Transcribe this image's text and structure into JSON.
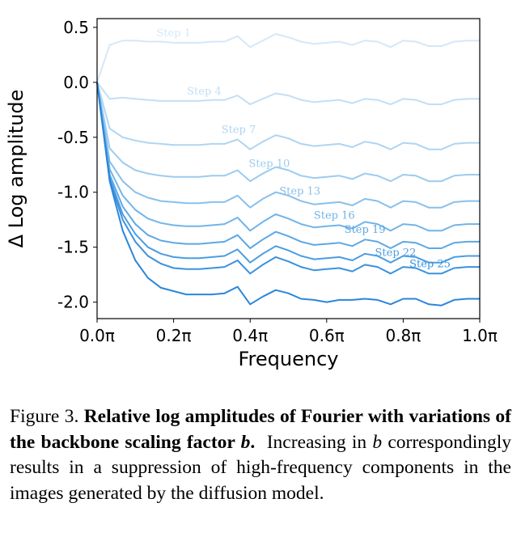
{
  "chart_data": {
    "type": "line",
    "xlabel": "Frequency",
    "ylabel": "Δ Log amplitude",
    "xlim": [
      0.0,
      1.0
    ],
    "ylim": [
      -2.15,
      0.58
    ],
    "x_ticks": [
      0.0,
      0.2,
      0.4,
      0.6,
      0.8,
      1.0
    ],
    "x_tick_labels": [
      "0.0π",
      "0.2π",
      "0.4π",
      "0.6π",
      "0.8π",
      "1.0π"
    ],
    "y_ticks": [
      0.5,
      0.0,
      -0.5,
      -1.0,
      -1.5,
      -2.0
    ],
    "y_tick_labels": [
      "0.5",
      "0.0",
      "-0.5",
      "-1.0",
      "-1.5",
      "-2.0"
    ],
    "grid": false,
    "legend": "none",
    "x": [
      0.0,
      0.033,
      0.067,
      0.1,
      0.133,
      0.167,
      0.2,
      0.233,
      0.267,
      0.3,
      0.333,
      0.367,
      0.4,
      0.433,
      0.467,
      0.5,
      0.533,
      0.567,
      0.6,
      0.633,
      0.667,
      0.7,
      0.733,
      0.767,
      0.8,
      0.833,
      0.867,
      0.9,
      0.933,
      0.967,
      1.0
    ],
    "series": [
      {
        "name": "Step 1",
        "color": "#d5e8f8",
        "label_x": 0.2,
        "values": [
          0.0,
          0.34,
          0.38,
          0.38,
          0.37,
          0.37,
          0.36,
          0.36,
          0.36,
          0.37,
          0.37,
          0.42,
          0.32,
          0.38,
          0.44,
          0.41,
          0.37,
          0.35,
          0.36,
          0.37,
          0.34,
          0.38,
          0.37,
          0.32,
          0.38,
          0.37,
          0.33,
          0.33,
          0.37,
          0.38,
          0.38
        ]
      },
      {
        "name": "Step 4",
        "color": "#c2dff5",
        "label_x": 0.28,
        "values": [
          0.0,
          -0.15,
          -0.14,
          -0.15,
          -0.16,
          -0.17,
          -0.17,
          -0.17,
          -0.17,
          -0.16,
          -0.16,
          -0.12,
          -0.2,
          -0.15,
          -0.1,
          -0.12,
          -0.16,
          -0.18,
          -0.17,
          -0.16,
          -0.19,
          -0.15,
          -0.16,
          -0.2,
          -0.15,
          -0.16,
          -0.2,
          -0.2,
          -0.16,
          -0.15,
          -0.15
        ]
      },
      {
        "name": "Step 7",
        "color": "#aed5f2",
        "label_x": 0.37,
        "values": [
          0.0,
          -0.42,
          -0.5,
          -0.53,
          -0.55,
          -0.56,
          -0.57,
          -0.57,
          -0.57,
          -0.56,
          -0.56,
          -0.52,
          -0.61,
          -0.54,
          -0.48,
          -0.51,
          -0.56,
          -0.58,
          -0.57,
          -0.56,
          -0.59,
          -0.54,
          -0.56,
          -0.61,
          -0.55,
          -0.56,
          -0.61,
          -0.61,
          -0.56,
          -0.55,
          -0.55
        ]
      },
      {
        "name": "Step 10",
        "color": "#9ccbef",
        "label_x": 0.45,
        "values": [
          0.0,
          -0.6,
          -0.73,
          -0.8,
          -0.83,
          -0.85,
          -0.86,
          -0.86,
          -0.86,
          -0.85,
          -0.85,
          -0.8,
          -0.9,
          -0.83,
          -0.77,
          -0.8,
          -0.85,
          -0.87,
          -0.86,
          -0.85,
          -0.88,
          -0.83,
          -0.85,
          -0.9,
          -0.84,
          -0.85,
          -0.9,
          -0.9,
          -0.85,
          -0.84,
          -0.84
        ]
      },
      {
        "name": "Step 13",
        "color": "#88c0ec",
        "label_x": 0.53,
        "values": [
          0.0,
          -0.72,
          -0.9,
          -1.0,
          -1.05,
          -1.08,
          -1.09,
          -1.1,
          -1.1,
          -1.09,
          -1.09,
          -1.03,
          -1.14,
          -1.06,
          -1.0,
          -1.03,
          -1.08,
          -1.11,
          -1.1,
          -1.09,
          -1.12,
          -1.06,
          -1.08,
          -1.14,
          -1.08,
          -1.09,
          -1.14,
          -1.14,
          -1.09,
          -1.08,
          -1.08
        ]
      },
      {
        "name": "Step 16",
        "color": "#72b4e8",
        "label_x": 0.62,
        "values": [
          0.0,
          -0.79,
          -1.03,
          -1.16,
          -1.24,
          -1.28,
          -1.3,
          -1.31,
          -1.31,
          -1.3,
          -1.29,
          -1.23,
          -1.35,
          -1.27,
          -1.2,
          -1.24,
          -1.29,
          -1.32,
          -1.31,
          -1.3,
          -1.33,
          -1.27,
          -1.29,
          -1.35,
          -1.29,
          -1.3,
          -1.35,
          -1.35,
          -1.3,
          -1.29,
          -1.29
        ]
      },
      {
        "name": "Step 19",
        "color": "#5ca8e5",
        "label_x": 0.7,
        "values": [
          0.0,
          -0.84,
          -1.13,
          -1.29,
          -1.39,
          -1.44,
          -1.46,
          -1.47,
          -1.47,
          -1.46,
          -1.45,
          -1.39,
          -1.51,
          -1.43,
          -1.36,
          -1.4,
          -1.45,
          -1.48,
          -1.47,
          -1.46,
          -1.49,
          -1.43,
          -1.45,
          -1.51,
          -1.45,
          -1.46,
          -1.51,
          -1.51,
          -1.46,
          -1.45,
          -1.45
        ]
      },
      {
        "name": "Step 22",
        "color": "#4a9de2",
        "label_x": 0.78,
        "values": [
          0.0,
          -0.87,
          -1.2,
          -1.38,
          -1.5,
          -1.56,
          -1.59,
          -1.6,
          -1.6,
          -1.59,
          -1.58,
          -1.52,
          -1.64,
          -1.56,
          -1.49,
          -1.53,
          -1.58,
          -1.61,
          -1.6,
          -1.59,
          -1.62,
          -1.56,
          -1.58,
          -1.64,
          -1.58,
          -1.59,
          -1.64,
          -1.64,
          -1.59,
          -1.58,
          -1.58
        ]
      },
      {
        "name": "Step 25",
        "color": "#3a92df",
        "label_x": 0.87,
        "values": [
          0.0,
          -0.89,
          -1.25,
          -1.45,
          -1.58,
          -1.65,
          -1.69,
          -1.7,
          -1.7,
          -1.69,
          -1.68,
          -1.62,
          -1.74,
          -1.66,
          -1.59,
          -1.63,
          -1.68,
          -1.71,
          -1.7,
          -1.69,
          -1.72,
          -1.66,
          -1.68,
          -1.74,
          -1.68,
          -1.69,
          -1.74,
          -1.74,
          -1.69,
          -1.68,
          -1.68
        ]
      },
      {
        "name": "",
        "color": "#2b86db",
        "values": [
          0.0,
          -0.9,
          -1.35,
          -1.62,
          -1.78,
          -1.87,
          -1.9,
          -1.93,
          -1.93,
          -1.93,
          -1.92,
          -1.86,
          -2.02,
          -1.95,
          -1.89,
          -1.92,
          -1.97,
          -1.98,
          -2.0,
          -1.98,
          -1.98,
          -1.97,
          -1.98,
          -2.02,
          -1.97,
          -1.97,
          -2.02,
          -2.03,
          -1.98,
          -1.97,
          -1.97
        ]
      }
    ]
  },
  "caption": {
    "label": "Figure 3.",
    "title": "Relative log amplitudes of Fourier with variations of the backbone scaling factor",
    "title_var": "b",
    "body_pre": "Increasing in",
    "body_var": "b",
    "body_post": "correspondingly results in a suppression of high-frequency components in the images generated by the diffusion model."
  }
}
